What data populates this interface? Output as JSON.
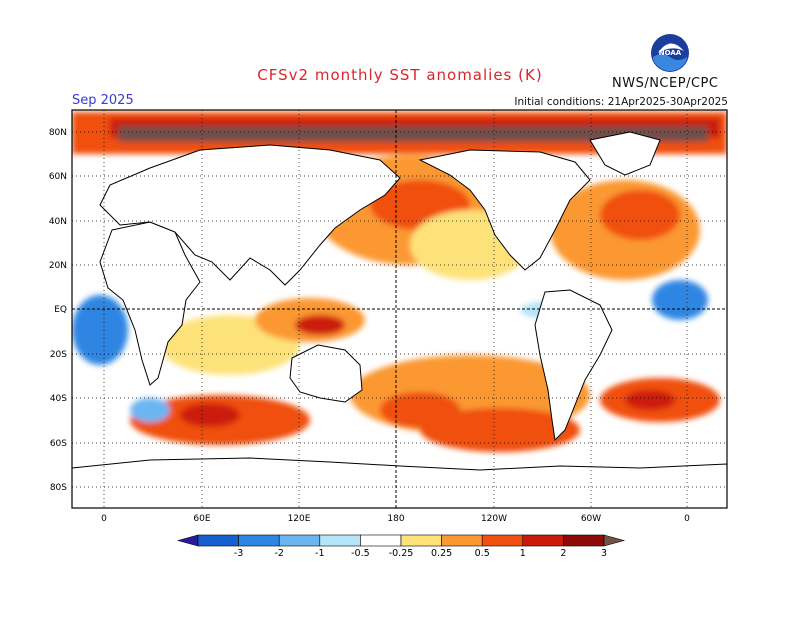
{
  "header": {
    "title": "CFSv2 monthly SST anomalies (K)",
    "valid_month": "Sep 2025",
    "initial_conditions": "Initial conditions: 21Apr2025-30Apr2025",
    "agency": "NWS/NCEP/CPC",
    "logo_text": "NOAA"
  },
  "map": {
    "lat_labels": [
      "80N",
      "60N",
      "40N",
      "20N",
      "EQ",
      "20S",
      "40S",
      "60S",
      "80S"
    ],
    "lon_labels": [
      "0",
      "60E",
      "120E",
      "180",
      "120W",
      "60W",
      "0"
    ]
  },
  "legend": {
    "labels": [
      "-3",
      "-2",
      "-1",
      "-0.5",
      "-0.25",
      "0.25",
      "0.5",
      "1",
      "2",
      "3"
    ],
    "colors": [
      "#2a1a9c",
      "#1560d0",
      "#2f86e2",
      "#6ab6f2",
      "#b4e4f8",
      "#ffffff",
      "#fde27a",
      "#fb9830",
      "#f05010",
      "#cc1a0a",
      "#8e0a08",
      "#735048"
    ]
  }
}
